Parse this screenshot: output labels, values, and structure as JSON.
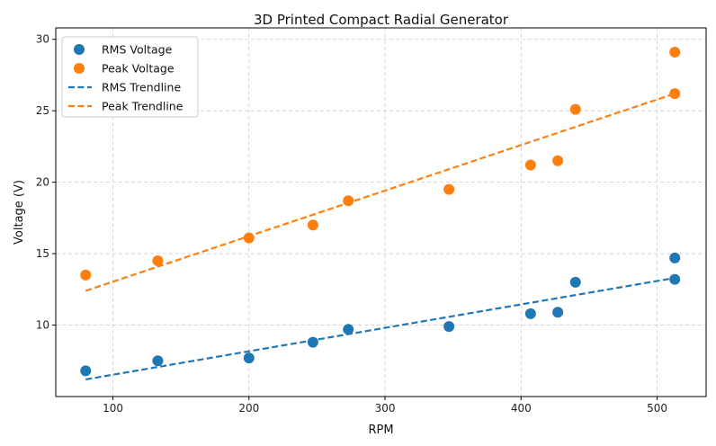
{
  "chart_data": {
    "type": "scatter",
    "title": "3D Printed Compact Radial Generator",
    "xlabel": "RPM",
    "ylabel": "Voltage (V)",
    "xlim": [
      58,
      536
    ],
    "ylim": [
      5,
      30.8
    ],
    "xticks": [
      100,
      200,
      300,
      400,
      500
    ],
    "yticks": [
      10,
      15,
      20,
      25,
      30
    ],
    "grid": true,
    "legend_position": "top-left",
    "colors": {
      "rms": "#1f77b4",
      "peak": "#ff7f0e"
    },
    "series": [
      {
        "name": "RMS Voltage",
        "kind": "scatter",
        "color": "#1f77b4",
        "x": [
          80,
          133,
          200,
          247,
          273,
          347,
          407,
          427,
          440,
          513,
          513
        ],
        "y": [
          6.8,
          7.5,
          7.7,
          8.8,
          9.7,
          9.9,
          10.8,
          10.9,
          13.0,
          13.2,
          14.7
        ]
      },
      {
        "name": "Peak Voltage",
        "kind": "scatter",
        "color": "#ff7f0e",
        "x": [
          80,
          133,
          200,
          247,
          273,
          347,
          407,
          427,
          440,
          513,
          513
        ],
        "y": [
          13.5,
          14.5,
          16.1,
          17.0,
          18.7,
          19.5,
          21.2,
          21.5,
          25.1,
          26.2,
          29.1
        ]
      },
      {
        "name": "RMS Trendline",
        "kind": "line",
        "dashed": true,
        "color": "#1f77b4",
        "x": [
          80,
          513
        ],
        "y": [
          6.2,
          13.3
        ]
      },
      {
        "name": "Peak Trendline",
        "kind": "line",
        "dashed": true,
        "color": "#ff7f0e",
        "x": [
          80,
          513
        ],
        "y": [
          12.4,
          26.2
        ]
      }
    ]
  }
}
